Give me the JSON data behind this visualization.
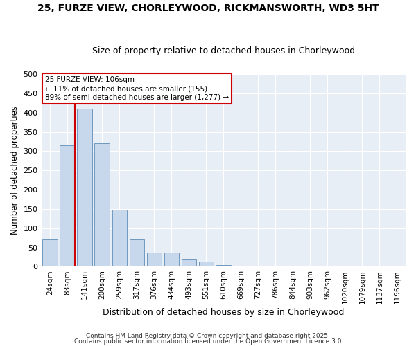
{
  "title_line1": "25, FURZE VIEW, CHORLEYWOOD, RICKMANSWORTH, WD3 5HT",
  "title_line2": "Size of property relative to detached houses in Chorleywood",
  "xlabel": "Distribution of detached houses by size in Chorleywood",
  "ylabel": "Number of detached properties",
  "categories": [
    "24sqm",
    "83sqm",
    "141sqm",
    "200sqm",
    "259sqm",
    "317sqm",
    "376sqm",
    "434sqm",
    "493sqm",
    "551sqm",
    "610sqm",
    "669sqm",
    "727sqm",
    "786sqm",
    "844sqm",
    "903sqm",
    "962sqm",
    "1020sqm",
    "1079sqm",
    "1137sqm",
    "1196sqm"
  ],
  "values": [
    70,
    315,
    410,
    320,
    148,
    70,
    37,
    37,
    20,
    13,
    5,
    2,
    2,
    2,
    0,
    0,
    0,
    0,
    0,
    0,
    2
  ],
  "bar_color": "#c8d8ec",
  "bar_edge_color": "#7098c0",
  "property_line_x": 1.45,
  "annotation_line1": "25 FURZE VIEW: 106sqm",
  "annotation_line2": "← 11% of detached houses are smaller (155)",
  "annotation_line3": "89% of semi-detached houses are larger (1,277) →",
  "annotation_box_color": "#ffffff",
  "annotation_box_edge": "#cc0000",
  "line_color": "#cc0000",
  "ylim": [
    0,
    500
  ],
  "yticks": [
    0,
    50,
    100,
    150,
    200,
    250,
    300,
    350,
    400,
    450,
    500
  ],
  "footnote1": "Contains HM Land Registry data © Crown copyright and database right 2025.",
  "footnote2": "Contains public sector information licensed under the Open Government Licence 3.0",
  "plot_bg_color": "#e8eef6",
  "fig_bg_color": "#ffffff",
  "grid_color": "#ffffff",
  "title_fontsize": 10,
  "subtitle_fontsize": 9
}
